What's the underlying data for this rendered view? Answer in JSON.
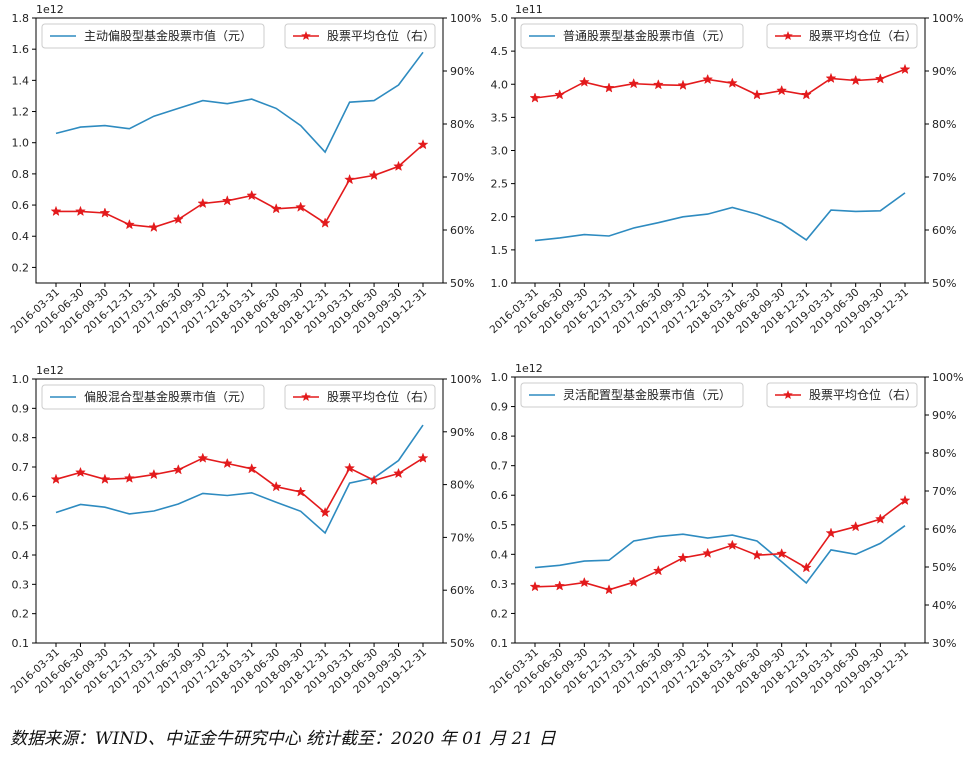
{
  "chart_data": [
    {
      "type": "line",
      "left_axis": {
        "exponent_label": "1e12",
        "ylim": [
          0.1,
          1.8
        ],
        "ticks": [
          0.2,
          0.4,
          0.6,
          0.8,
          1.0,
          1.2,
          1.4,
          1.6,
          1.8
        ],
        "tick_labels": [
          "0.2",
          "0.4",
          "0.6",
          "0.8",
          "1.0",
          "1.2",
          "1.4",
          "1.6",
          "1.8"
        ]
      },
      "right_axis": {
        "ylim": [
          50,
          100
        ],
        "ticks": [
          50,
          60,
          70,
          80,
          90,
          100
        ],
        "tick_labels": [
          "50%",
          "60%",
          "70%",
          "80%",
          "90%",
          "100%"
        ]
      },
      "categories": [
        "2016-03-31",
        "2016-06-30",
        "2016-09-30",
        "2016-12-31",
        "2017-03-31",
        "2017-06-30",
        "2017-09-30",
        "2017-12-31",
        "2018-03-31",
        "2018-06-30",
        "2018-09-30",
        "2018-12-31",
        "2019-03-31",
        "2019-06-30",
        "2019-09-30",
        "2019-12-31"
      ],
      "series": [
        {
          "name": "主动偏股型基金股票市值（元）",
          "axis": "left",
          "color": "#2e8bc0",
          "marker": "none",
          "values": [
            1.06,
            1.1,
            1.11,
            1.09,
            1.17,
            1.22,
            1.27,
            1.25,
            1.28,
            1.22,
            1.11,
            0.94,
            1.26,
            1.27,
            1.37,
            1.58
          ]
        },
        {
          "name": "股票平均仓位（右）",
          "axis": "right",
          "color": "#e31a1c",
          "marker": "star",
          "values": [
            63.5,
            63.5,
            63.2,
            61.0,
            60.5,
            62.0,
            65.0,
            65.5,
            66.5,
            64.0,
            64.3,
            61.3,
            69.5,
            70.3,
            72.0,
            76.1
          ]
        }
      ]
    },
    {
      "type": "line",
      "left_axis": {
        "exponent_label": "1e11",
        "ylim": [
          1.0,
          5.0
        ],
        "ticks": [
          1.0,
          1.5,
          2.0,
          2.5,
          3.0,
          3.5,
          4.0,
          4.5,
          5.0
        ],
        "tick_labels": [
          "1.0",
          "1.5",
          "2.0",
          "2.5",
          "3.0",
          "3.5",
          "4.0",
          "4.5",
          "5.0"
        ]
      },
      "right_axis": {
        "ylim": [
          50,
          100
        ],
        "ticks": [
          50,
          60,
          70,
          80,
          90,
          100
        ],
        "tick_labels": [
          "50%",
          "60%",
          "70%",
          "80%",
          "90%",
          "100%"
        ]
      },
      "categories": [
        "2016-03-31",
        "2016-06-30",
        "2016-09-30",
        "2016-12-31",
        "2017-03-31",
        "2017-06-30",
        "2017-09-30",
        "2017-12-31",
        "2018-03-31",
        "2018-06-30",
        "2018-09-30",
        "2018-12-31",
        "2019-03-31",
        "2019-06-30",
        "2019-09-30",
        "2019-12-31"
      ],
      "series": [
        {
          "name": "普通股票型基金股票市值（元）",
          "axis": "left",
          "color": "#2e8bc0",
          "marker": "none",
          "values": [
            1.64,
            1.68,
            1.73,
            1.71,
            1.83,
            1.91,
            2.0,
            2.04,
            2.14,
            2.04,
            1.9,
            1.65,
            2.1,
            2.08,
            2.09,
            2.36
          ]
        },
        {
          "name": "股票平均仓位（右）",
          "axis": "right",
          "color": "#e31a1c",
          "marker": "star",
          "values": [
            84.9,
            85.5,
            87.9,
            86.8,
            87.6,
            87.4,
            87.3,
            88.4,
            87.7,
            85.5,
            86.3,
            85.5,
            88.6,
            88.2,
            88.5,
            90.3
          ]
        }
      ]
    },
    {
      "type": "line",
      "left_axis": {
        "exponent_label": "1e12",
        "ylim": [
          0.1,
          1.0
        ],
        "ticks": [
          0.1,
          0.2,
          0.3,
          0.4,
          0.5,
          0.6,
          0.7,
          0.8,
          0.9,
          1.0
        ],
        "tick_labels": [
          "0.1",
          "0.2",
          "0.3",
          "0.4",
          "0.5",
          "0.6",
          "0.7",
          "0.8",
          "0.9",
          "1.0"
        ]
      },
      "right_axis": {
        "ylim": [
          50,
          100
        ],
        "ticks": [
          50,
          60,
          70,
          80,
          90,
          100
        ],
        "tick_labels": [
          "50%",
          "60%",
          "70%",
          "80%",
          "90%",
          "100%"
        ]
      },
      "categories": [
        "2016-03-31",
        "2016-06-30",
        "2016-09-30",
        "2016-12-31",
        "2017-03-31",
        "2017-06-30",
        "2017-09-30",
        "2017-12-31",
        "2018-03-31",
        "2018-06-30",
        "2018-09-30",
        "2018-12-31",
        "2019-03-31",
        "2019-06-30",
        "2019-09-30",
        "2019-12-31"
      ],
      "series": [
        {
          "name": "偏股混合型基金股票市值（元）",
          "axis": "left",
          "color": "#2e8bc0",
          "marker": "none",
          "values": [
            0.545,
            0.572,
            0.563,
            0.54,
            0.55,
            0.574,
            0.61,
            0.603,
            0.612,
            0.58,
            0.549,
            0.475,
            0.645,
            0.663,
            0.722,
            0.843
          ]
        },
        {
          "name": "股票平均仓位（右）",
          "axis": "right",
          "color": "#e31a1c",
          "marker": "star",
          "values": [
            81.0,
            82.3,
            81.0,
            81.2,
            81.9,
            82.8,
            85.0,
            84.0,
            83.0,
            79.6,
            78.6,
            74.7,
            83.1,
            80.8,
            82.1,
            85.0
          ]
        }
      ]
    },
    {
      "type": "line",
      "left_axis": {
        "exponent_label": "1e12",
        "ylim": [
          0.1,
          1.0
        ],
        "ticks": [
          0.1,
          0.2,
          0.3,
          0.4,
          0.5,
          0.6,
          0.7,
          0.8,
          0.9,
          1.0
        ],
        "tick_labels": [
          "0.1",
          "0.2",
          "0.3",
          "0.4",
          "0.5",
          "0.6",
          "0.7",
          "0.8",
          "0.9",
          "1.0"
        ]
      },
      "right_axis": {
        "ylim": [
          30,
          100
        ],
        "ticks": [
          30,
          40,
          50,
          60,
          70,
          80,
          90,
          100
        ],
        "tick_labels": [
          "30%",
          "40%",
          "50%",
          "60%",
          "70%",
          "80%",
          "90%",
          "100%"
        ]
      },
      "categories": [
        "2016-03-31",
        "2016-06-30",
        "2016-09-30",
        "2016-12-31",
        "2017-03-31",
        "2017-06-30",
        "2017-09-30",
        "2017-12-31",
        "2018-03-31",
        "2018-06-30",
        "2018-09-30",
        "2018-12-31",
        "2019-03-31",
        "2019-06-30",
        "2019-09-30",
        "2019-12-31"
      ],
      "series": [
        {
          "name": "灵活配置型基金股票市值（元）",
          "axis": "left",
          "color": "#2e8bc0",
          "marker": "none",
          "values": [
            0.355,
            0.363,
            0.377,
            0.38,
            0.445,
            0.46,
            0.468,
            0.455,
            0.465,
            0.445,
            0.375,
            0.303,
            0.415,
            0.4,
            0.437,
            0.497
          ]
        },
        {
          "name": "股票平均仓位（右）",
          "axis": "right",
          "color": "#e31a1c",
          "marker": "star",
          "values": [
            44.8,
            45.0,
            45.9,
            44.0,
            46.0,
            49.0,
            52.4,
            53.6,
            55.7,
            53.1,
            53.5,
            49.8,
            58.9,
            60.6,
            62.6,
            67.5
          ]
        }
      ]
    }
  ],
  "source_note": "数据来源：WIND、中证金牛研究中心   统计截至：2020 年 01 月 21 日"
}
